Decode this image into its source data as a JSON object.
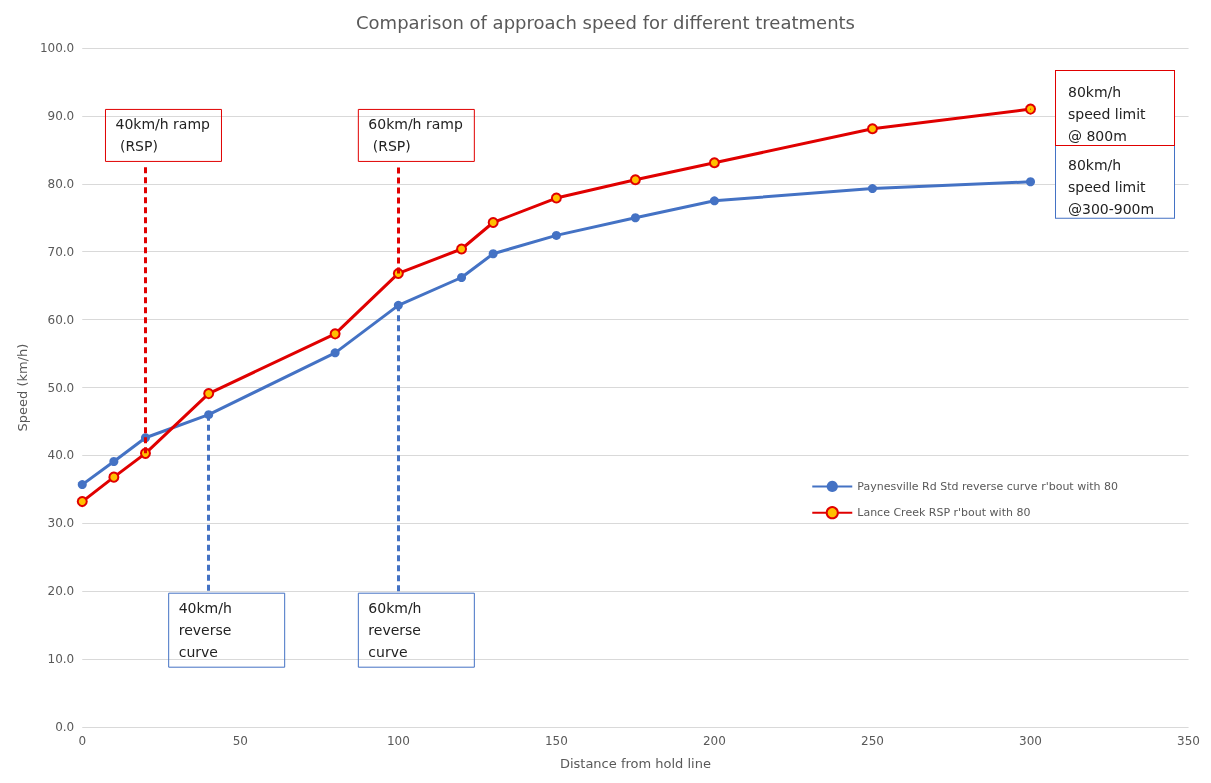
{
  "chart_data": {
    "type": "line",
    "title": "Comparison of approach speed for different treatments",
    "xlabel": "Distance from hold line",
    "ylabel": "Speed (km/h)",
    "series": [
      {
        "name": "Paynesville Rd Std reverse curve r'bout with 80",
        "color": "#4472c4",
        "x": [
          0,
          10,
          20,
          40,
          80,
          100,
          120,
          130,
          150,
          175,
          200,
          250,
          300
        ],
        "values": [
          35.7,
          39.1,
          42.6,
          46.0,
          55.1,
          62.1,
          66.2,
          69.7,
          72.4,
          75.0,
          77.5,
          79.3,
          80.3
        ]
      },
      {
        "name": "Lance Creek RSP r'bout with 80",
        "color": "#e00000",
        "x": [
          0,
          10,
          20,
          40,
          80,
          100,
          120,
          130,
          150,
          175,
          200,
          250,
          300
        ],
        "values": [
          33.2,
          36.8,
          40.3,
          49.1,
          57.9,
          66.8,
          70.4,
          74.3,
          77.9,
          80.6,
          83.1,
          88.1,
          91.0
        ]
      }
    ],
    "annotations": [
      {
        "text": "40km/h ramp (RSP)",
        "x": 20,
        "y": 40.3
      },
      {
        "text": "60km/h ramp (RSP)",
        "x": 100,
        "y": 66.8
      },
      {
        "text": "40km/h reverse curve",
        "x": 40,
        "y": 46.0
      },
      {
        "text": "60km/h reverse curve",
        "x": 100,
        "y": 62.1
      },
      {
        "text": "80km/h speed limit @ 800m",
        "x": 300,
        "y": 91.0
      },
      {
        "text": "80km/h speed limit @300-900m",
        "x": 300,
        "y": 80.3
      }
    ],
    "xlim": [
      0,
      350
    ],
    "xticks": [
      0,
      50,
      100,
      150,
      200,
      250,
      300,
      350
    ],
    "ylim": [
      0,
      100
    ],
    "yticks": [
      {
        "value": 0,
        "label": "0.0"
      },
      {
        "value": 10,
        "label": "10.0"
      },
      {
        "value": 20,
        "label": "20.0"
      },
      {
        "value": 30,
        "label": "30.0"
      },
      {
        "value": 40,
        "label": "40.0"
      },
      {
        "value": 50,
        "label": "50.0"
      },
      {
        "value": 60,
        "label": "60.0"
      },
      {
        "value": 70,
        "label": "70.0"
      },
      {
        "value": 80,
        "label": "80.0"
      },
      {
        "value": 90,
        "label": "90.0"
      },
      {
        "value": 100,
        "label": "100.0"
      }
    ],
    "grid": "y",
    "legend": "right",
    "marker": "circle",
    "line_style": "solid"
  }
}
